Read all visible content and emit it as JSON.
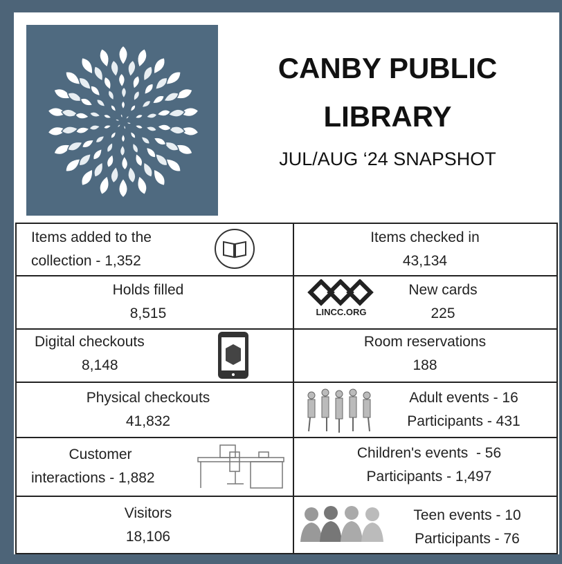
{
  "header": {
    "title_lines": [
      "CANBY PUBLIC",
      "LIBRARY"
    ],
    "subtitle": "JUL/AUG ‘24 SNAPSHOT"
  },
  "logo": "LINCC.ORG",
  "cells": [
    {
      "lines": [
        "Items added to the",
        "collection - 1,352"
      ]
    },
    {
      "lines": [
        "Items checked in",
        "43,134"
      ]
    },
    {
      "lines": [
        "Holds filled",
        "8,515"
      ]
    },
    {
      "lines": [
        "New cards",
        "225"
      ]
    },
    {
      "lines": [
        "Digital checkouts",
        "8,148"
      ]
    },
    {
      "lines": [
        "Room reservations",
        "188"
      ]
    },
    {
      "lines": [
        "Physical checkouts",
        "41,832"
      ]
    },
    {
      "lines": [
        "Adult events - 16",
        "Participants - 431"
      ]
    },
    {
      "lines": [
        "Customer",
        "interactions - 1,882"
      ]
    },
    {
      "lines": [
        "Children's events  - 56",
        "Participants - 1,497"
      ]
    },
    {
      "lines": [
        "Visitors",
        "18,106"
      ]
    },
    {
      "lines": [
        "Teen events - 10",
        "Participants - 76"
      ]
    }
  ]
}
